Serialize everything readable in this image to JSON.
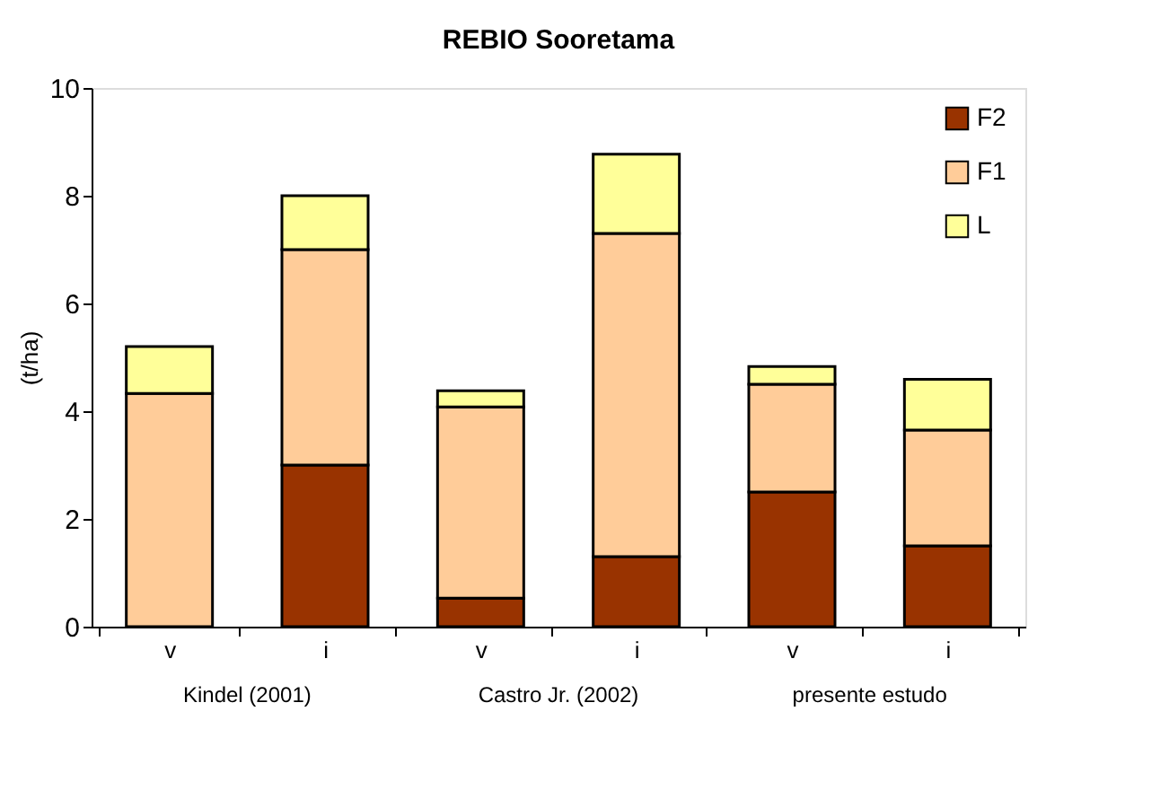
{
  "chart_data": {
    "type": "bar",
    "title": "REBIO Sooretama",
    "ylabel": "(t/ha)",
    "stacked": true,
    "categories": [
      "v",
      "i",
      "v",
      "i",
      "v",
      "i"
    ],
    "series": [
      {
        "name": "F2",
        "color": "#993300",
        "values": [
          0,
          3.0,
          0.53,
          1.3,
          2.5,
          1.5
        ]
      },
      {
        "name": "F1",
        "color": "#ffcc99",
        "values": [
          4.33,
          4.0,
          3.55,
          6.0,
          2.0,
          2.15
        ]
      },
      {
        "name": "L",
        "color": "#ffff99",
        "values": [
          0.87,
          1.0,
          0.3,
          1.47,
          0.33,
          0.94
        ]
      }
    ],
    "ylim": [
      0,
      10
    ],
    "yticks": [
      0,
      2,
      4,
      6,
      8,
      10
    ],
    "grid": false,
    "legend": "top right",
    "annotations": [
      "Kindel (2001)",
      "Castro Jr. (2002)",
      "presente estudo"
    ]
  }
}
